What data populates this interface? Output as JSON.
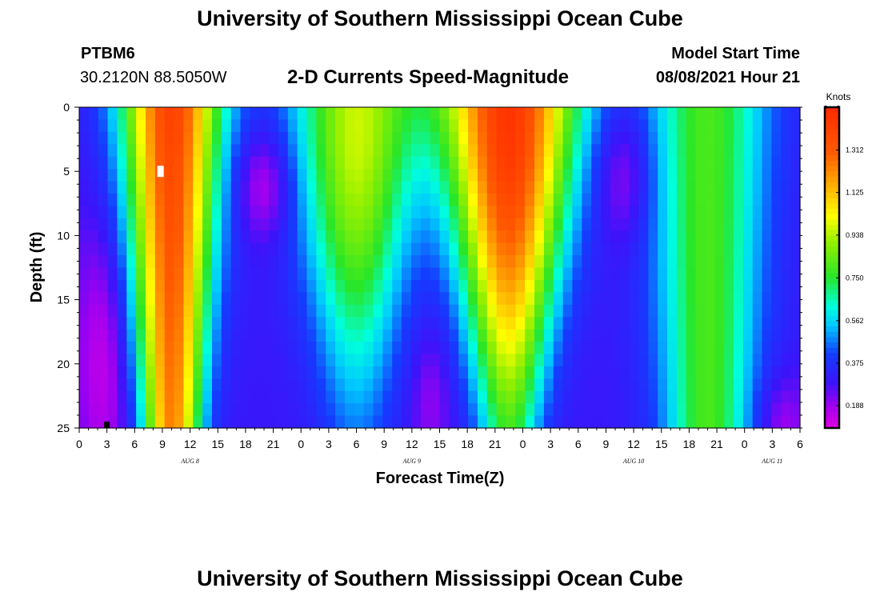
{
  "page": {
    "title_top": "University of Southern Mississippi Ocean Cube",
    "title_bottom": "University of Southern Mississippi Ocean Cube",
    "station_id": "PTBM6",
    "station_coords": "30.2120N  88.5050W",
    "plot_title": "2-D Currents Speed-Magnitude",
    "model_start_label": "Model Start Time",
    "model_start_value": "08/08/2021 Hour 21"
  },
  "chart_data": {
    "type": "heatmap",
    "title": "2-D Currents Speed-Magnitude",
    "xlabel": "Forecast Time(Z)",
    "ylabel": "Depth (ft)",
    "colorbar_label": "Knots",
    "x_ticks": [
      "0",
      "3",
      "6",
      "9",
      "12",
      "15",
      "18",
      "21",
      "0",
      "3",
      "6",
      "9",
      "12",
      "15",
      "18",
      "21",
      "0",
      "3",
      "6",
      "9",
      "12",
      "15",
      "18",
      "21",
      "0",
      "3",
      "6"
    ],
    "x_hours_range": [
      0,
      78
    ],
    "date_labels": [
      {
        "text": "AUG 8",
        "hour": 12
      },
      {
        "text": "AUG 9",
        "hour": 36
      },
      {
        "text": "AUG 10",
        "hour": 60
      },
      {
        "text": "AUG 11",
        "hour": 75
      }
    ],
    "y_ticks": [
      0,
      5,
      10,
      15,
      20,
      25
    ],
    "ylim": [
      0,
      25
    ],
    "colorbar_ticks": [
      "1.312",
      "1.125",
      "0.938",
      "0.750",
      "0.562",
      "0.375",
      "0.188"
    ],
    "colorbar_range": [
      0.09,
      1.5
    ],
    "grid_cols": 76,
    "grid_rows": 26,
    "speed_features_knots": [
      {
        "desc": "surface jet 1",
        "center_hour": 10,
        "peak_speed": 1.35,
        "depth_at_25": 1.32,
        "bottom_depth_ft": 24
      },
      {
        "desc": "surface jet 2",
        "center_hour": 30,
        "peak_speed": 0.95,
        "bottom_depth_ft": 17
      },
      {
        "desc": "surface jet 3",
        "center_hour": 46,
        "peak_speed": 1.4,
        "bottom_depth_ft": 22
      },
      {
        "desc": "surface jet 4",
        "center_hour": 68,
        "peak_speed": 0.78,
        "bottom_depth_ft": 24
      }
    ],
    "markers": [
      {
        "desc": "white marker",
        "hour": 8.8,
        "depth_ft": 5
      },
      {
        "desc": "black marker",
        "hour": 3,
        "depth_ft": 25
      }
    ]
  }
}
